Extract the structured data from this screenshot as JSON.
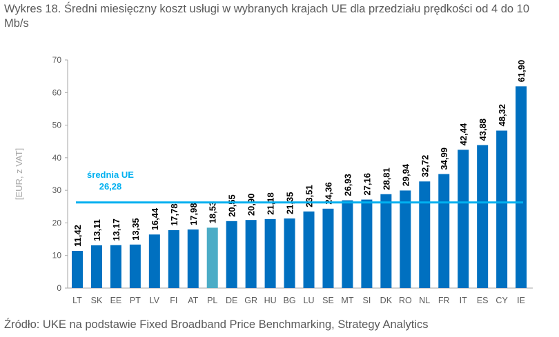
{
  "title": "Wykres 18. Średni miesięczny koszt usługi w wybranych krajach UE dla przedziału prędkości od 4 do 10 Mb/s",
  "source": "Źródło: UKE na podstawie Fixed Broadband Price Benchmarking, Strategy Analytics",
  "chart_data": {
    "type": "bar",
    "title": "Wykres 18. Średni miesięczny koszt usługi w wybranych krajach UE dla przedziału prędkości od 4 do 10 Mb/s",
    "xlabel": "",
    "ylabel": "[EUR, z VAT]",
    "ylim": [
      0,
      70
    ],
    "yticks": [
      0,
      10,
      20,
      30,
      40,
      50,
      60,
      70
    ],
    "grid": false,
    "categories": [
      "LT",
      "SK",
      "EE",
      "PT",
      "LV",
      "FI",
      "AT",
      "PL",
      "DE",
      "GR",
      "HU",
      "BG",
      "LU",
      "SE",
      "MT",
      "SI",
      "DK",
      "RO",
      "NL",
      "FR",
      "IT",
      "ES",
      "CY",
      "IE"
    ],
    "values": [
      11.42,
      13.11,
      13.17,
      13.35,
      16.44,
      17.78,
      17.98,
      18.53,
      20.55,
      20.9,
      21.18,
      21.35,
      23.51,
      24.36,
      26.93,
      27.16,
      28.81,
      29.94,
      32.72,
      34.99,
      42.44,
      43.88,
      48.32,
      61.9
    ],
    "data_labels": [
      "11,42",
      "13,11",
      "13,17",
      "13,35",
      "16,44",
      "17,78",
      "17,98",
      "18,53",
      "20,55",
      "20,90",
      "21,18",
      "21,35",
      "23,51",
      "24,36",
      "26,93",
      "27,16",
      "28,81",
      "29,94",
      "32,72",
      "34,99",
      "42,44",
      "43,88",
      "48,32",
      "61,90"
    ],
    "highlight_category": "PL",
    "colors": {
      "bar": "#0070C0",
      "highlight": "#4BACC6",
      "mean_line": "#00B0F0",
      "axis": "#A6A6A6"
    },
    "reference_line": {
      "value": 26.28,
      "label": "średnia UE",
      "value_label": "26,28"
    }
  }
}
